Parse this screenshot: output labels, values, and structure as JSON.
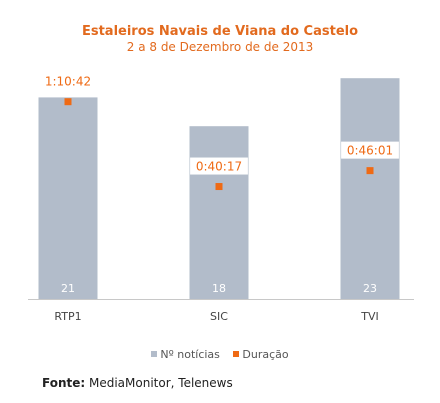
{
  "chart_data": {
    "type": "bar",
    "title": "Estaleiros Navais de Viana do Castelo",
    "subtitle": "2 a 8 de Dezembro de de 2013",
    "categories": [
      "RTP1",
      "SIC",
      "TVI"
    ],
    "series": [
      {
        "name": "Nº notícias",
        "kind": "bar",
        "values": [
          21,
          18,
          23
        ]
      },
      {
        "name": "Duração",
        "kind": "point",
        "values": [
          70.7,
          40.3,
          46.0
        ],
        "labels": [
          "1:10:42",
          "0:40:17",
          "0:46:01"
        ]
      }
    ],
    "ylim": [
      0,
      25
    ],
    "duration_ylim": [
      0,
      86
    ],
    "grid": false,
    "legend_position": "bottom",
    "colors": {
      "bar": "#b2bcca",
      "point": "#ef6a14",
      "title": "#e26a1e",
      "bar_label": "#ffffff",
      "tick_label": "#444444"
    }
  },
  "legend": {
    "items": [
      "Nº notícias",
      "Duração"
    ]
  },
  "footer": {
    "label": "Fonte:",
    "text": " MediaMonitor, Telenews"
  }
}
